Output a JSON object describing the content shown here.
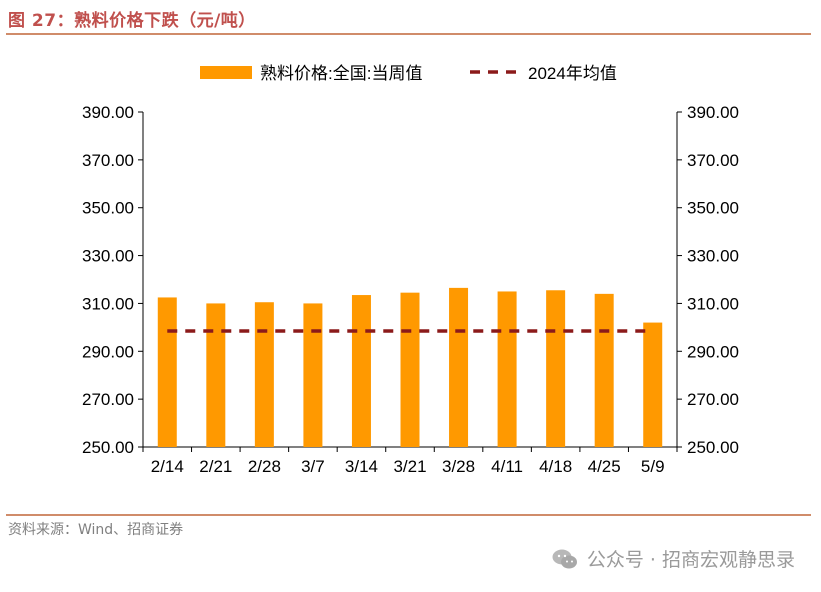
{
  "figure_title": "图 27：熟料价格下跌（元/吨）",
  "source": "资料来源：Wind、招商证券",
  "watermark": "公众号 · 招商宏观静思录",
  "colors": {
    "bar": "#ff9900",
    "avg_line": "#8b1a1a",
    "title": "#c0504d",
    "rule": "#d08c6a"
  },
  "chart_data": {
    "type": "bar",
    "categories": [
      "2/14",
      "2/21",
      "2/28",
      "3/7",
      "3/14",
      "3/21",
      "3/28",
      "4/11",
      "4/18",
      "4/25",
      "5/9"
    ],
    "series": [
      {
        "name": "熟料价格:全国:当周值",
        "type": "bar",
        "values": [
          312.5,
          310.0,
          310.5,
          310.0,
          313.5,
          314.5,
          316.5,
          315.0,
          315.5,
          314.0,
          302.0
        ]
      },
      {
        "name": "2024年均值",
        "type": "line",
        "style": "dashed",
        "values": [
          298.5,
          298.5,
          298.5,
          298.5,
          298.5,
          298.5,
          298.5,
          298.5,
          298.5,
          298.5,
          298.5
        ]
      }
    ],
    "ylim": [
      250,
      390
    ],
    "yticks": [
      "250.00",
      "270.00",
      "290.00",
      "310.00",
      "330.00",
      "350.00",
      "370.00",
      "390.00"
    ],
    "legend_position": "top-center",
    "grid": false,
    "secondary_axis": true
  }
}
